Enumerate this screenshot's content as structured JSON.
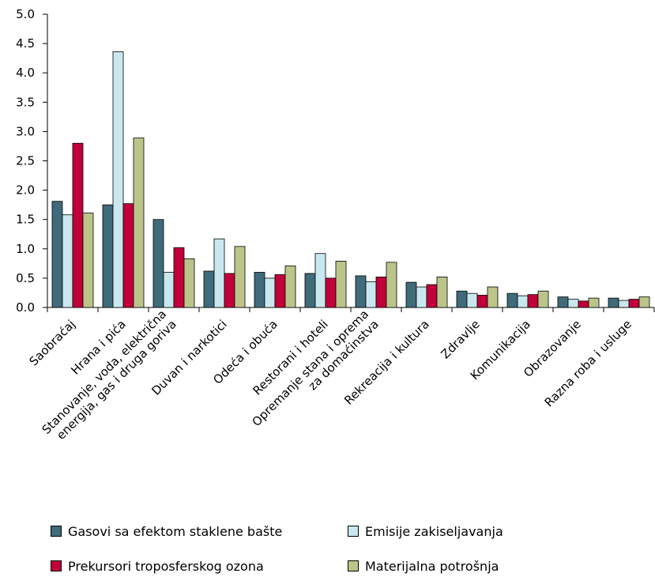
{
  "chart_data": {
    "type": "bar",
    "categories": [
      [
        "Saobraćaj"
      ],
      [
        "Hrana i pića"
      ],
      [
        "Stanovanje, voda, električna",
        "energija, gas i druga goriva"
      ],
      [
        "Duvan i narkotici"
      ],
      [
        "Odeća i obuća"
      ],
      [
        "Restorani i hoteli"
      ],
      [
        "Opremanje stana i oprema",
        "za domaćinstva"
      ],
      [
        "Rekreacija i kultura"
      ],
      [
        "Zdravlje"
      ],
      [
        "Komunikacija"
      ],
      [
        "Obrazovanje"
      ],
      [
        "Razna roba i usluge"
      ]
    ],
    "series": [
      {
        "name": "Gasovi sa efektom staklene bašte",
        "color": "#3f6b7a",
        "values": [
          1.81,
          1.75,
          1.5,
          0.62,
          0.6,
          0.58,
          0.54,
          0.43,
          0.28,
          0.24,
          0.18,
          0.16
        ]
      },
      {
        "name": "Emisije zakiseljavanja",
        "color": "#c9e7ee",
        "values": [
          1.58,
          4.36,
          0.6,
          1.17,
          0.5,
          0.92,
          0.44,
          0.35,
          0.24,
          0.2,
          0.14,
          0.12
        ]
      },
      {
        "name": "Prekursori troposferskog ozona",
        "color": "#c0003a",
        "values": [
          2.8,
          1.77,
          1.02,
          0.58,
          0.56,
          0.5,
          0.52,
          0.39,
          0.21,
          0.22,
          0.11,
          0.14
        ]
      },
      {
        "name": "Materijalna potrošnja",
        "color": "#bcc48a",
        "values": [
          1.61,
          2.89,
          0.83,
          1.04,
          0.71,
          0.79,
          0.77,
          0.52,
          0.35,
          0.28,
          0.16,
          0.18
        ]
      }
    ],
    "yticks": [
      "0.0",
      "0.5",
      "1.0",
      "1.5",
      "2.0",
      "2.5",
      "3.0",
      "3.5",
      "4.0",
      "4.5",
      "5.0"
    ],
    "ylim": [
      0,
      5
    ],
    "grid": false,
    "legend_position": "bottom",
    "title": "",
    "xlabel": "",
    "ylabel": ""
  }
}
